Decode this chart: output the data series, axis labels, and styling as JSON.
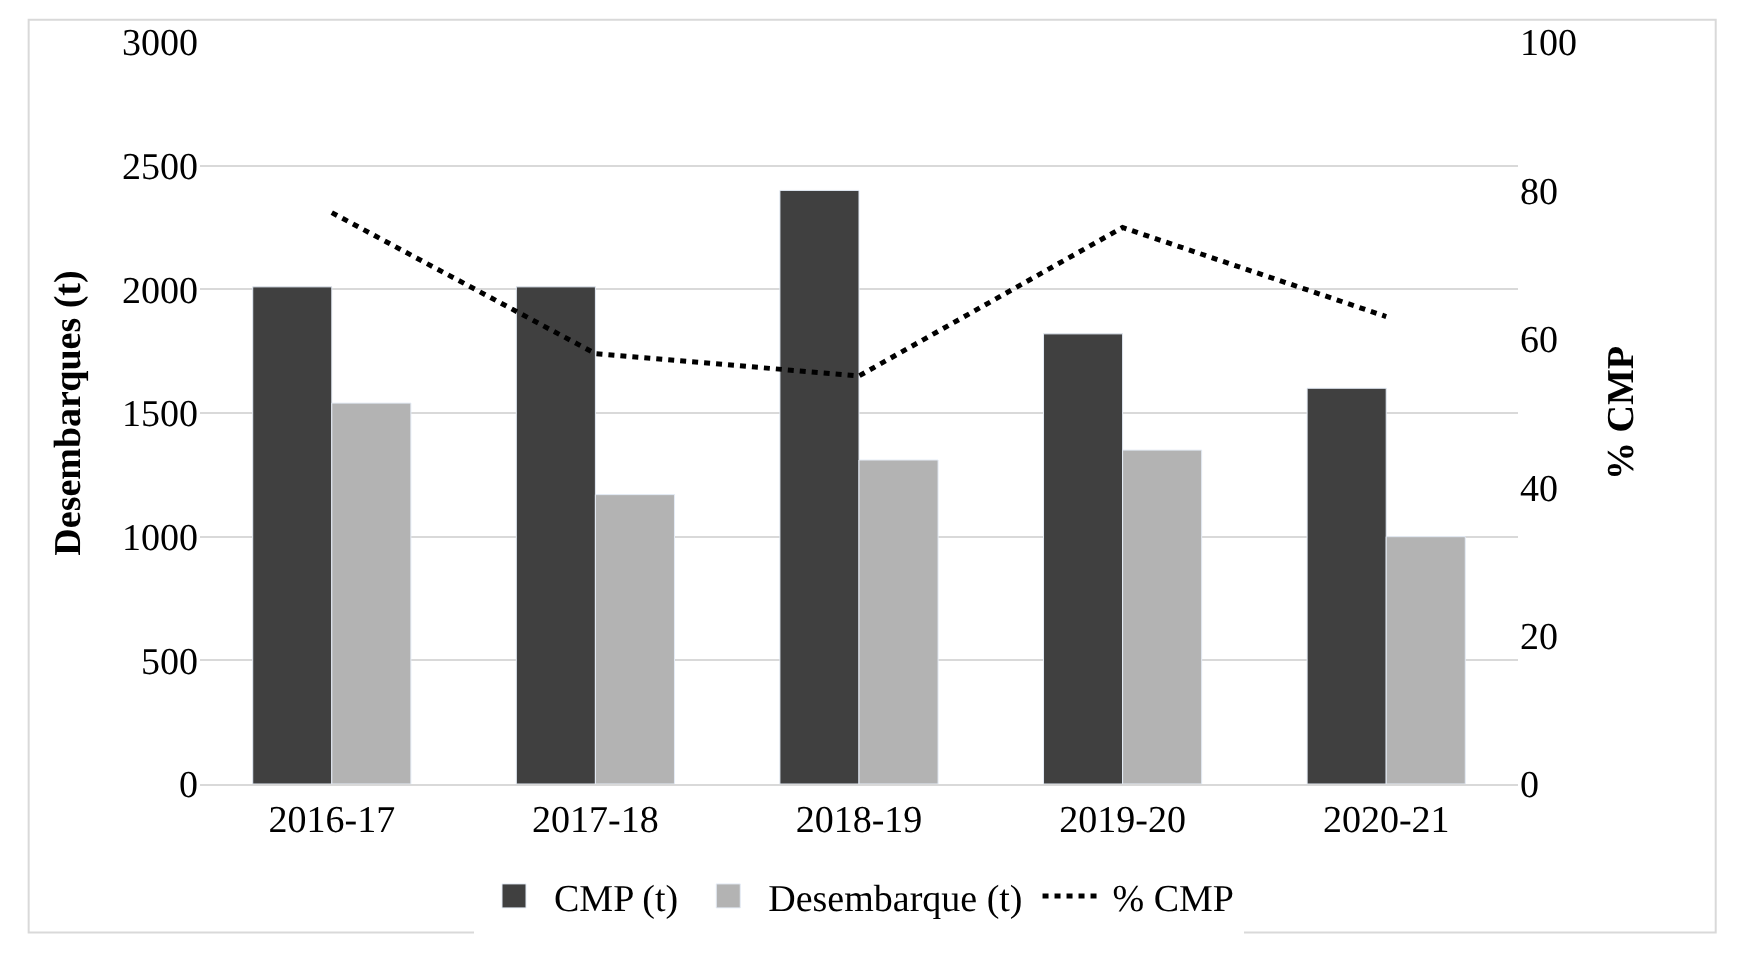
{
  "chart_data": {
    "type": "bar",
    "categories": [
      "2016-17",
      "2017-18",
      "2018-19",
      "2019-20",
      "2020-21"
    ],
    "ylabel": "Desembarques (t)",
    "y2label": "% CMP",
    "series": [
      {
        "name": "CMP (t)",
        "color": "#404040",
        "values": [
          2010,
          2010,
          2400,
          1820,
          1600
        ]
      },
      {
        "name": "Desembarque (t)",
        "color": "#b3b3b3",
        "values": [
          1540,
          1170,
          1310,
          1350,
          1000
        ]
      },
      {
        "name": "% CMP",
        "type": "line",
        "axis": "y2",
        "color": "#000000",
        "line_style": "dotted",
        "values": [
          77,
          58,
          55,
          75,
          63
        ]
      }
    ],
    "ylim": [
      0,
      3000
    ],
    "yticks": [
      0,
      500,
      1000,
      1500,
      2000,
      2500,
      3000
    ],
    "y2lim": [
      0,
      100
    ],
    "y2ticks": [
      0,
      20,
      40,
      60,
      80,
      100
    ],
    "grid": "y",
    "legend": "bottom"
  }
}
